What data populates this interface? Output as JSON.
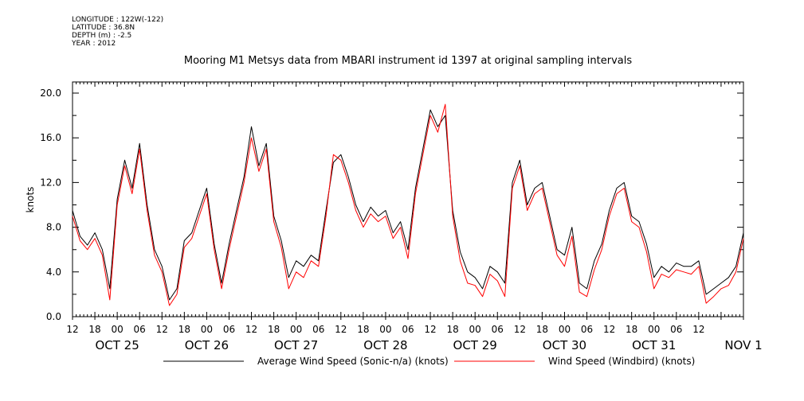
{
  "header": {
    "longitude": "LONGITUDE : 122W(-122)",
    "latitude": "LATITUDE : 36.8N",
    "depth": "DEPTH (m) : -2.5",
    "year": "YEAR : 2012"
  },
  "chart_data": {
    "type": "line",
    "title": "Mooring M1 Metsys data from MBARI instrument id 1397 at original sampling intervals",
    "ylabel": "knots",
    "xlabel": "",
    "ylim": [
      0,
      21
    ],
    "xlim_hours": [
      12,
      192
    ],
    "y_ticks": [
      "0.0",
      "4.0",
      "8.0",
      "12.0",
      "16.0",
      "20.0"
    ],
    "x_hour_ticks": [
      "12",
      "18",
      "00",
      "06",
      "12",
      "18",
      "00",
      "06",
      "12",
      "18",
      "00",
      "06",
      "12",
      "18",
      "00",
      "06",
      "12",
      "18",
      "00",
      "06",
      "12",
      "18",
      "00",
      "06",
      "12",
      "18",
      "00",
      "06",
      "12"
    ],
    "date_labels": [
      "OCT 25",
      "OCT 26",
      "OCT 27",
      "OCT 28",
      "OCT 29",
      "OCT 30",
      "OCT 31",
      "NOV  1"
    ],
    "grid": false,
    "legend": "bottom",
    "series": [
      {
        "name": "Average Wind Speed (Sonic-n/a) (knots)",
        "color": "#000000",
        "x_hours": [
          12,
          14,
          16,
          18,
          20,
          22,
          24,
          26,
          28,
          30,
          32,
          34,
          36,
          38,
          40,
          42,
          44,
          46,
          48,
          50,
          52,
          54,
          56,
          58,
          60,
          62,
          64,
          66,
          68,
          70,
          72,
          74,
          76,
          78,
          80,
          82,
          84,
          86,
          88,
          90,
          92,
          94,
          96,
          98,
          100,
          102,
          104,
          106,
          108,
          110,
          112,
          114,
          116,
          118,
          120,
          122,
          124,
          126,
          128,
          130,
          132,
          134,
          136,
          138,
          140,
          142,
          144,
          146,
          148,
          150,
          152,
          154,
          156,
          158,
          160,
          162,
          164,
          166,
          168,
          170,
          172,
          174,
          176,
          178,
          180,
          182,
          184,
          186,
          188,
          190,
          192
        ],
        "values": [
          9.5,
          7.2,
          6.4,
          7.5,
          6.0,
          2.5,
          10.5,
          14.0,
          11.5,
          15.5,
          10.0,
          6.0,
          4.5,
          1.5,
          2.5,
          6.8,
          7.5,
          9.5,
          11.5,
          6.5,
          3.0,
          6.5,
          9.5,
          12.5,
          17.0,
          13.5,
          15.5,
          9.0,
          6.8,
          3.5,
          5.0,
          4.5,
          5.5,
          5.0,
          9.5,
          13.8,
          14.5,
          12.5,
          10.0,
          8.5,
          9.8,
          9.0,
          9.5,
          7.5,
          8.5,
          6.0,
          11.5,
          15.0,
          18.5,
          17.0,
          18.0,
          9.5,
          5.8,
          4.0,
          3.5,
          2.5,
          4.5,
          4.0,
          3.0,
          12.0,
          14.0,
          10.0,
          11.5,
          12.0,
          9.0,
          6.0,
          5.5,
          8.0,
          3.0,
          2.5,
          5.0,
          6.5,
          9.5,
          11.5,
          12.0,
          9.0,
          8.5,
          6.5,
          3.5,
          4.5,
          4.0,
          4.8,
          4.5,
          4.5,
          5.0,
          2.0,
          2.5,
          3.0,
          3.5,
          4.5,
          7.5
        ]
      },
      {
        "name": "Wind Speed (Windbird) (knots)",
        "color": "#ff0000",
        "x_hours": [
          12,
          14,
          16,
          18,
          20,
          22,
          24,
          26,
          28,
          30,
          32,
          34,
          36,
          38,
          40,
          42,
          44,
          46,
          48,
          50,
          52,
          54,
          56,
          58,
          60,
          62,
          64,
          66,
          68,
          70,
          72,
          74,
          76,
          78,
          80,
          82,
          84,
          86,
          88,
          90,
          92,
          94,
          96,
          98,
          100,
          102,
          104,
          106,
          108,
          110,
          112,
          114,
          116,
          118,
          120,
          122,
          124,
          126,
          128,
          130,
          132,
          134,
          136,
          138,
          140,
          142,
          144,
          146,
          148,
          150,
          152,
          154,
          156,
          158,
          160,
          162,
          164,
          166,
          168,
          170,
          172,
          174,
          176,
          178,
          180,
          182,
          184,
          186,
          188,
          190,
          192
        ],
        "values": [
          9.0,
          6.8,
          6.0,
          7.0,
          5.5,
          1.5,
          10.0,
          13.5,
          11.0,
          15.0,
          9.5,
          5.5,
          4.0,
          1.0,
          2.0,
          6.2,
          7.0,
          9.0,
          11.0,
          6.0,
          2.5,
          6.0,
          9.0,
          12.0,
          16.0,
          13.0,
          15.0,
          8.5,
          6.2,
          2.5,
          4.0,
          3.5,
          5.0,
          4.5,
          9.0,
          14.5,
          14.0,
          12.0,
          9.5,
          8.0,
          9.2,
          8.5,
          9.0,
          7.0,
          8.0,
          5.2,
          11.0,
          14.5,
          18.0,
          16.5,
          19.0,
          9.0,
          5.0,
          3.0,
          2.8,
          1.8,
          3.8,
          3.2,
          1.8,
          11.5,
          13.5,
          9.5,
          11.0,
          11.5,
          8.5,
          5.5,
          4.5,
          7.2,
          2.2,
          1.8,
          4.2,
          6.0,
          9.0,
          11.0,
          11.5,
          8.5,
          8.0,
          5.8,
          2.5,
          3.8,
          3.5,
          4.2,
          4.0,
          3.8,
          4.5,
          1.2,
          1.8,
          2.5,
          2.8,
          4.0,
          7.0
        ]
      }
    ]
  }
}
